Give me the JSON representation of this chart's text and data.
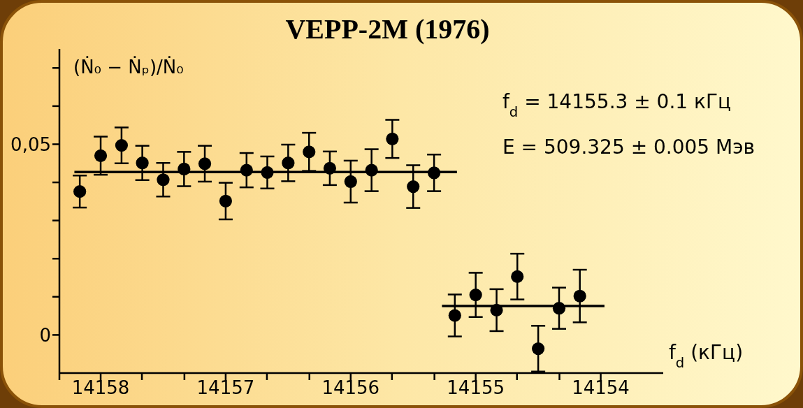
{
  "chart_data": {
    "type": "scatter",
    "title": "VEPP-2M (1976)",
    "xlabel": "f$_{d}$ (кГц)",
    "ylabel": "(Ṅ₀ − Ṅₚ)/Ṅ₀",
    "annotations": [
      "f$_{d}$ = 14155.3 ± 0.1 кГц",
      "E = 509.325 ± 0.005 Мэв"
    ],
    "xlim": [
      14158.33,
      14153.5
    ],
    "xticks": [
      {
        "value": 14158.33,
        "label": null
      },
      14158,
      {
        "value": 14157.67,
        "label": null
      },
      {
        "value": 14157.33,
        "label": null
      },
      14157,
      {
        "value": 14156.67,
        "label": null
      },
      {
        "value": 14156.33,
        "label": null
      },
      14156,
      {
        "value": 14155.67,
        "label": null
      },
      {
        "value": 14155.33,
        "label": null
      },
      14155,
      {
        "value": 14154.67,
        "label": null
      },
      {
        "value": 14154.33,
        "label": null
      },
      14154
    ],
    "ylim": [
      -0.01,
      0.075
    ],
    "yticks": [
      0,
      {
        "value": 0.01,
        "label": null
      },
      {
        "value": 0.02,
        "label": null
      },
      {
        "value": 0.03,
        "label": null
      },
      {
        "value": 0.04,
        "label": null
      },
      {
        "value": 0.05,
        "label": "0,05"
      },
      {
        "value": 0.06,
        "label": null
      },
      {
        "value": 0.07,
        "label": null
      }
    ],
    "grid": false,
    "legend": false,
    "marker": "circle",
    "series": [
      {
        "color": "#000000",
        "x": [
          14158.167,
          14158,
          14157.833,
          14157.667,
          14157.5,
          14157.333,
          14157.167,
          14157,
          14156.833,
          14156.667,
          14156.5,
          14156.333,
          14156.167,
          14156,
          14155.833,
          14155.667,
          14155.5,
          14155.333,
          14155.167,
          14155,
          14154.833,
          14154.667,
          14154.5,
          14154.333,
          14154.167
        ],
        "values": [
          0.0376,
          0.047,
          0.0497,
          0.0451,
          0.0407,
          0.0435,
          0.0449,
          0.0351,
          0.0432,
          0.0426,
          0.0451,
          0.048,
          0.0437,
          0.0402,
          0.0432,
          0.0514,
          0.0389,
          0.0425,
          0.0051,
          0.0105,
          0.0065,
          0.0153,
          -0.0036,
          0.007,
          0.0102
        ],
        "errors": [
          0.0042,
          0.005,
          0.0047,
          0.0045,
          0.0044,
          0.0045,
          0.0047,
          0.0048,
          0.0045,
          0.0042,
          0.0048,
          0.005,
          0.0044,
          0.0055,
          0.0055,
          0.005,
          0.0056,
          0.0048,
          0.0055,
          0.0058,
          0.0055,
          0.006,
          0.006,
          0.0054,
          0.0069
        ]
      },
      {
        "type": "line",
        "marker": "none",
        "color": "#000000",
        "line_style": "solid",
        "x": [
          14158.21,
          14155.15
        ],
        "values": [
          0.0427,
          0.0427
        ]
      },
      {
        "type": "line",
        "marker": "none",
        "color": "#000000",
        "line_style": "solid",
        "x": [
          14155.27,
          14153.97
        ],
        "values": [
          0.0076,
          0.0076
        ]
      }
    ]
  }
}
